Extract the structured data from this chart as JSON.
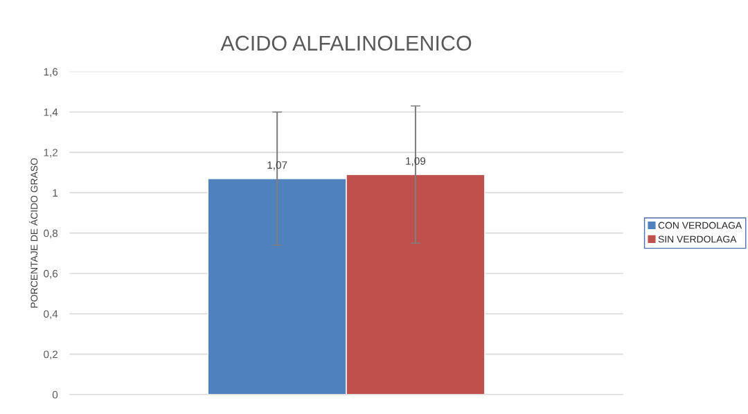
{
  "chart_data": {
    "type": "bar",
    "title": "ACIDO ALFALINOLENICO",
    "ylabel": "PORCENTAJE DE ÁCIDO GRASO",
    "categories": [
      null
    ],
    "series": [
      {
        "name": "CON VERDOLAGA",
        "color": "#4f81bd",
        "values": [
          1.07
        ],
        "errors": [
          0.33
        ],
        "value_labels": [
          "1,07"
        ]
      },
      {
        "name": "SIN VERDOLAGA",
        "color": "#c0504d",
        "values": [
          1.09
        ],
        "errors": [
          0.34
        ],
        "value_labels": [
          "1,09"
        ]
      }
    ],
    "ylim": [
      0,
      1.6
    ],
    "yticks": [
      {
        "value": 0,
        "label": "0"
      },
      {
        "value": 0.2,
        "label": "0,2"
      },
      {
        "value": 0.4,
        "label": "0,4"
      },
      {
        "value": 0.6,
        "label": "0,6"
      },
      {
        "value": 0.8,
        "label": "0,8"
      },
      {
        "value": 1,
        "label": "1"
      },
      {
        "value": 1.2,
        "label": "1,2"
      },
      {
        "value": 1.4,
        "label": "1,4"
      },
      {
        "value": 1.6,
        "label": "1,6"
      }
    ],
    "grid": "y",
    "legend": "right"
  }
}
